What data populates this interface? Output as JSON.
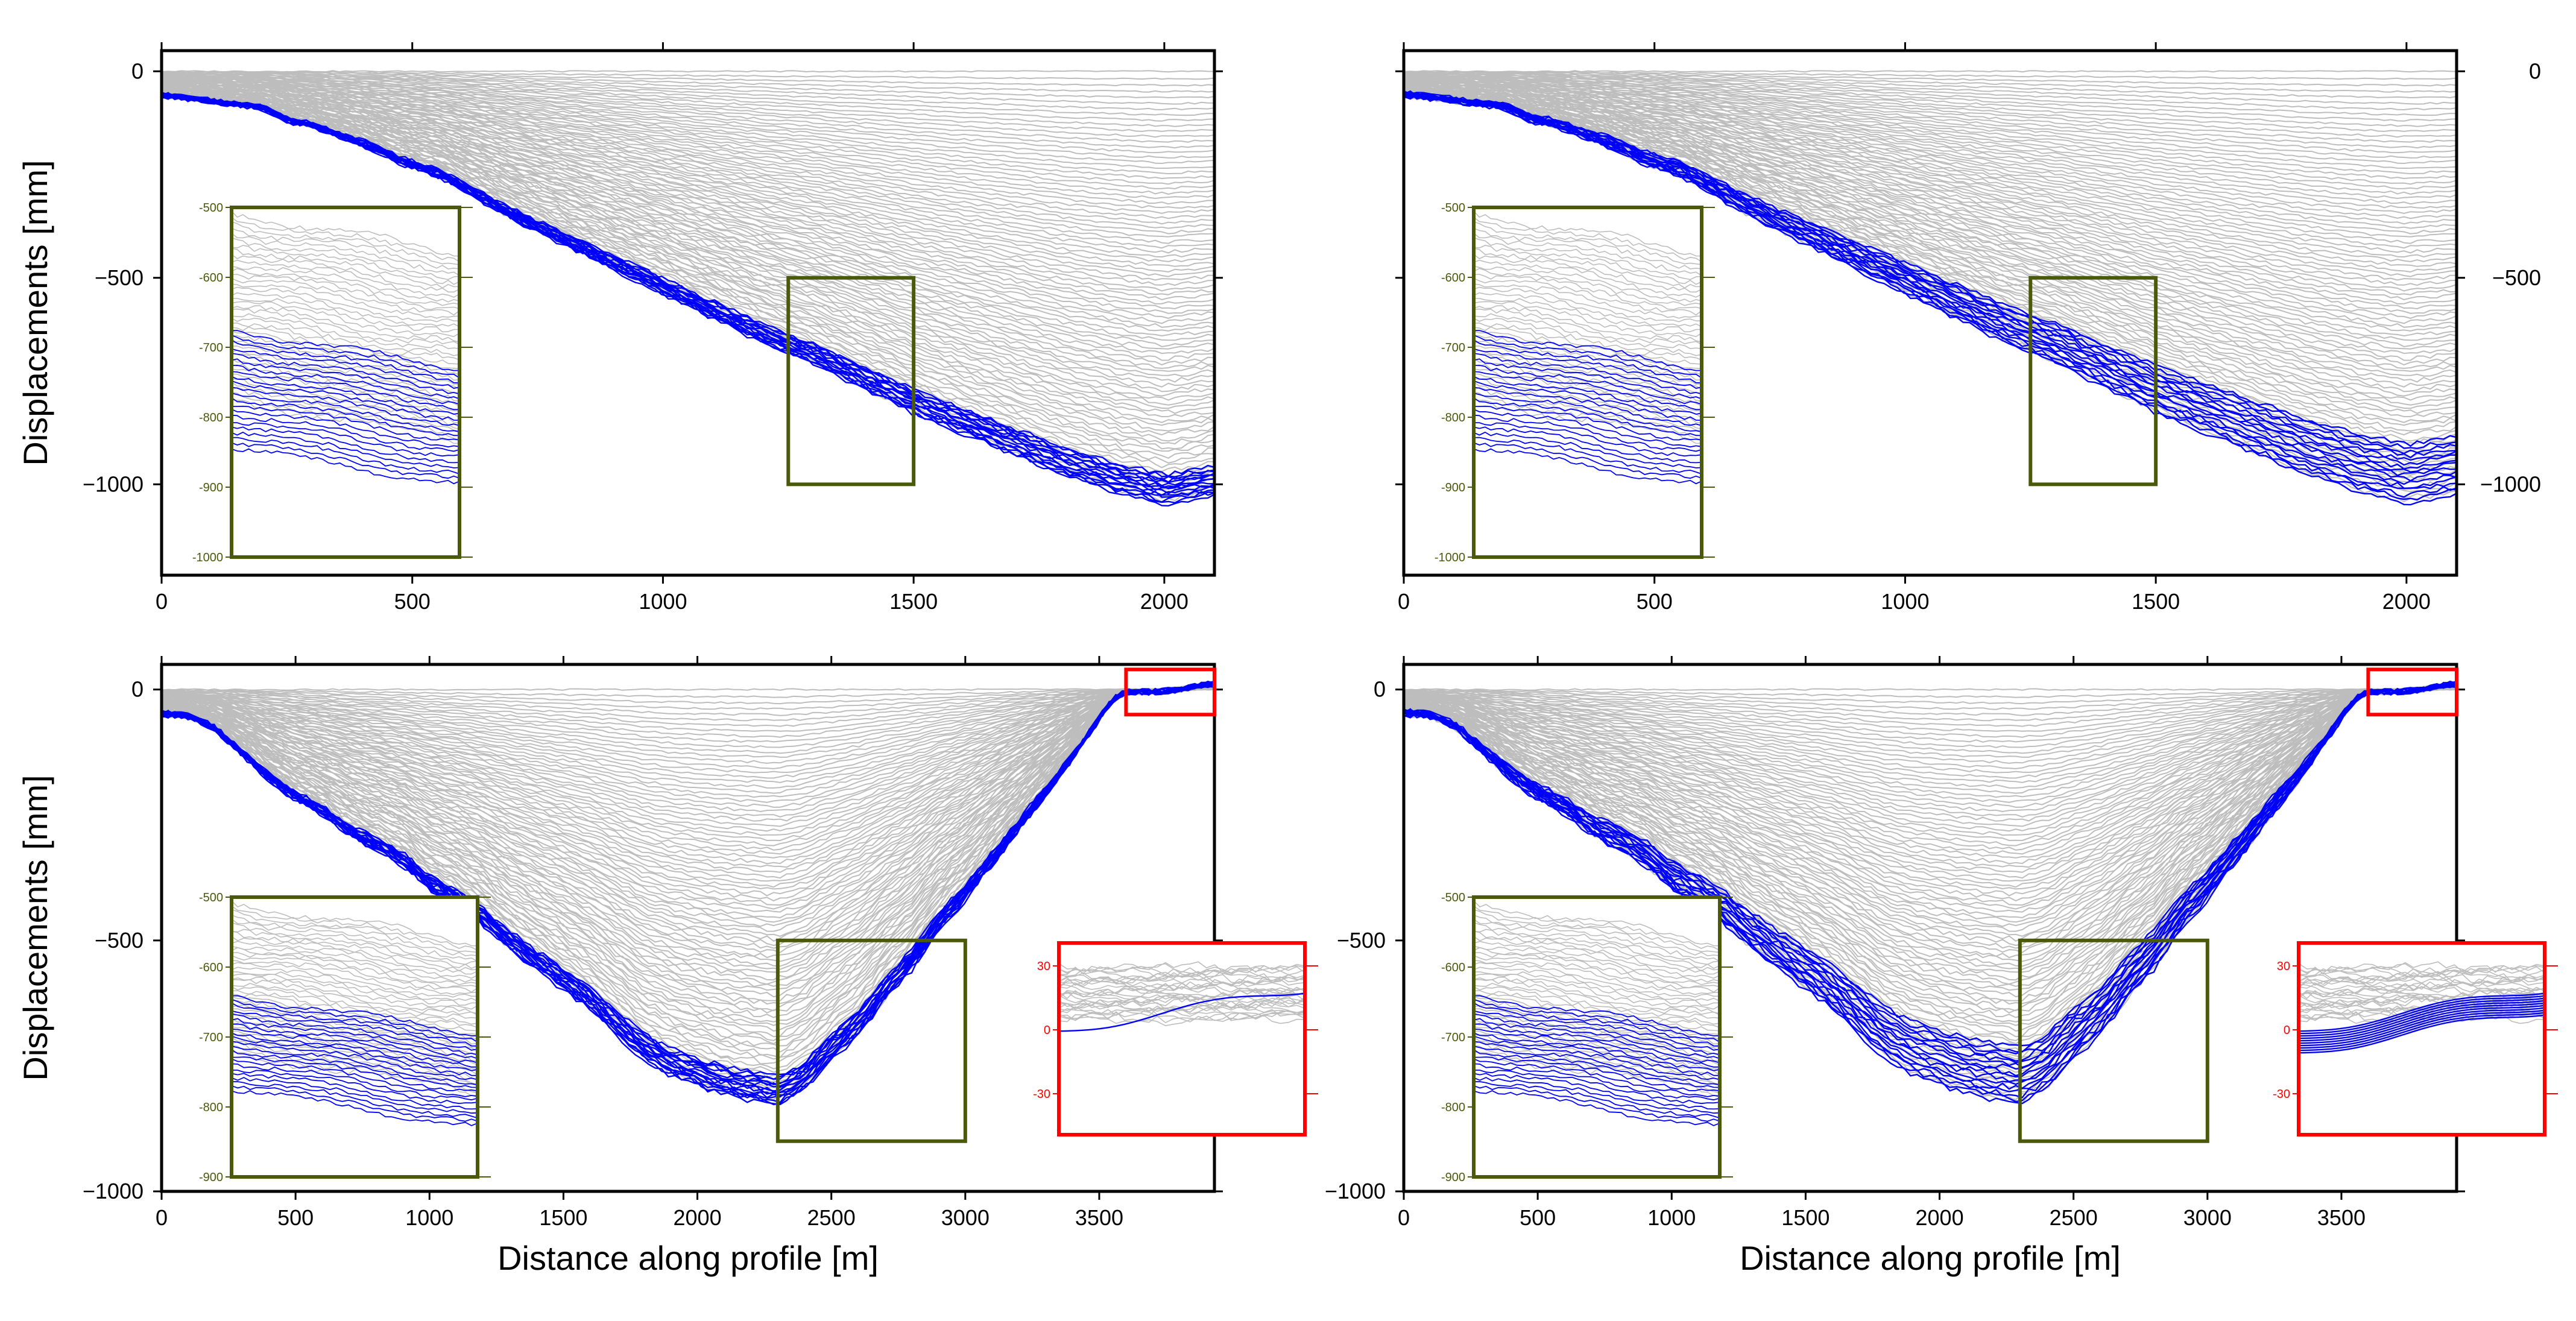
{
  "figure": {
    "description_colors": {
      "history_line": "#bdbdbd",
      "final_line": "#0000ff",
      "inset_green": "#4b5a0a",
      "inset_red": "#ff0000",
      "axis": "#000000"
    }
  },
  "chart_data": [
    {
      "id": "panel-top-left",
      "type": "line",
      "xlabel": "",
      "ylabel": "Displacements [mm]",
      "xlim": [
        0,
        2100
      ],
      "ylim": [
        -1220,
        50
      ],
      "x_ticks": [
        "0",
        "500",
        "1000",
        "1500",
        "2000"
      ],
      "y_ticks": [
        "0",
        "−500",
        "−1000"
      ],
      "y_tick_side": "left",
      "profile": "A",
      "variant": "smooth",
      "x": [
        0,
        100,
        200,
        260,
        300,
        400,
        480,
        560,
        700,
        800,
        900,
        1000,
        1100,
        1200,
        1300,
        1400,
        1500,
        1600,
        1700,
        1800,
        1900,
        2000,
        2050,
        2100
      ],
      "final_displacement_mm": [
        -60,
        -75,
        -90,
        -125,
        -135,
        -180,
        -225,
        -260,
        -360,
        -420,
        -480,
        -540,
        -600,
        -660,
        -710,
        -770,
        -830,
        -880,
        -930,
        -980,
        -1020,
        -1050,
        -1040,
        -1030
      ],
      "zoom_box": {
        "x_range": [
          1250,
          1500
        ],
        "y_range": [
          -1000,
          -500
        ]
      },
      "inset": {
        "color": "green",
        "y_ticks": [
          "-500",
          "-600",
          "-700",
          "-800",
          "-900",
          "-1000"
        ]
      }
    },
    {
      "id": "panel-top-right",
      "type": "line",
      "xlabel": "",
      "ylabel": "",
      "xlim": [
        0,
        2100
      ],
      "ylim": [
        -1220,
        50
      ],
      "x_ticks": [
        "0",
        "500",
        "1000",
        "1500",
        "2000"
      ],
      "y_ticks": [
        "0",
        "−500",
        "−1000"
      ],
      "y_tick_side": "right",
      "profile": "A",
      "variant": "stepped",
      "x": [
        0,
        100,
        200,
        260,
        300,
        400,
        480,
        560,
        700,
        800,
        900,
        1000,
        1100,
        1200,
        1300,
        1400,
        1500,
        1600,
        1700,
        1800,
        1900,
        2000,
        2050,
        2100
      ],
      "final_displacement_mm": [
        -60,
        -75,
        -90,
        -125,
        -135,
        -180,
        -225,
        -260,
        -360,
        -420,
        -480,
        -540,
        -600,
        -660,
        -710,
        -770,
        -830,
        -880,
        -930,
        -980,
        -1020,
        -1050,
        -1040,
        -1030
      ],
      "zoom_box": {
        "x_range": [
          1250,
          1500
        ],
        "y_range": [
          -1000,
          -500
        ]
      },
      "inset": {
        "color": "green",
        "y_ticks": [
          "-500",
          "-600",
          "-700",
          "-800",
          "-900",
          "-1000"
        ]
      }
    },
    {
      "id": "panel-bottom-left",
      "type": "line",
      "xlabel": "Distance along profile [m]",
      "ylabel": "Displacements [mm]",
      "xlim": [
        0,
        3930
      ],
      "ylim": [
        -1000,
        50
      ],
      "x_ticks": [
        "0",
        "500",
        "1000",
        "1500",
        "2000",
        "2500",
        "3000",
        "3500"
      ],
      "y_ticks": [
        "0",
        "−500",
        "−1000"
      ],
      "y_tick_side": "left",
      "profile": "B",
      "variant": "smooth",
      "x": [
        0,
        100,
        200,
        300,
        400,
        500,
        600,
        700,
        800,
        900,
        1000,
        1100,
        1200,
        1300,
        1400,
        1500,
        1600,
        1700,
        1800,
        1900,
        2000,
        2100,
        2200,
        2300,
        2400,
        2500,
        2600,
        2700,
        2800,
        2900,
        3000,
        3100,
        3200,
        3300,
        3400,
        3500,
        3550,
        3600,
        3700,
        3800,
        3900,
        3930
      ],
      "final_displacement_mm": [
        -50,
        -55,
        -80,
        -130,
        -180,
        -220,
        -250,
        -290,
        -320,
        -350,
        -400,
        -430,
        -470,
        -520,
        -560,
        -600,
        -640,
        -690,
        -740,
        -770,
        -790,
        -810,
        -820,
        -830,
        -800,
        -740,
        -690,
        -620,
        -560,
        -480,
        -420,
        -350,
        -280,
        -210,
        -140,
        -60,
        -20,
        -5,
        -5,
        0,
        10,
        10
      ],
      "zoom_box_green": {
        "x_range": [
          2300,
          3000
        ],
        "y_range": [
          -900,
          -500
        ]
      },
      "zoom_box_red": {
        "x_range": [
          3600,
          3930
        ],
        "y_range": [
          -50,
          40
        ]
      },
      "inset_green": {
        "y_ticks": [
          "-500",
          "-600",
          "-700",
          "-800",
          "-900"
        ]
      },
      "inset_red": {
        "y_ticks": [
          "30",
          "0",
          "-30"
        ]
      }
    },
    {
      "id": "panel-bottom-right",
      "type": "line",
      "xlabel": "Distance along profile [m]",
      "ylabel": "",
      "xlim": [
        0,
        3930
      ],
      "ylim": [
        -1000,
        50
      ],
      "x_ticks": [
        "0",
        "500",
        "1000",
        "1500",
        "2000",
        "2500",
        "3000",
        "3500"
      ],
      "y_ticks": [
        "0",
        "−500",
        "−1000"
      ],
      "y_tick_side": "left",
      "profile": "B",
      "variant": "stepped",
      "x": [
        0,
        100,
        200,
        300,
        400,
        500,
        600,
        700,
        800,
        900,
        1000,
        1100,
        1200,
        1300,
        1400,
        1500,
        1600,
        1700,
        1800,
        1900,
        2000,
        2100,
        2200,
        2300,
        2400,
        2500,
        2600,
        2700,
        2800,
        2900,
        3000,
        3100,
        3200,
        3300,
        3400,
        3500,
        3550,
        3600,
        3700,
        3800,
        3900,
        3930
      ],
      "final_displacement_mm": [
        -50,
        -55,
        -80,
        -130,
        -180,
        -220,
        -250,
        -290,
        -320,
        -350,
        -400,
        -430,
        -470,
        -520,
        -560,
        -600,
        -640,
        -690,
        -740,
        -770,
        -790,
        -810,
        -820,
        -830,
        -800,
        -740,
        -690,
        -620,
        -560,
        -480,
        -420,
        -350,
        -280,
        -210,
        -140,
        -60,
        -20,
        -5,
        -5,
        0,
        10,
        10
      ],
      "zoom_box_green": {
        "x_range": [
          2300,
          3000
        ],
        "y_range": [
          -900,
          -500
        ]
      },
      "zoom_box_red": {
        "x_range": [
          3600,
          3930
        ],
        "y_range": [
          -50,
          40
        ]
      },
      "inset_green": {
        "y_ticks": [
          "-500",
          "-600",
          "-700",
          "-800",
          "-900"
        ]
      },
      "inset_red": {
        "y_ticks": [
          "30",
          "0",
          "-30"
        ]
      }
    }
  ]
}
